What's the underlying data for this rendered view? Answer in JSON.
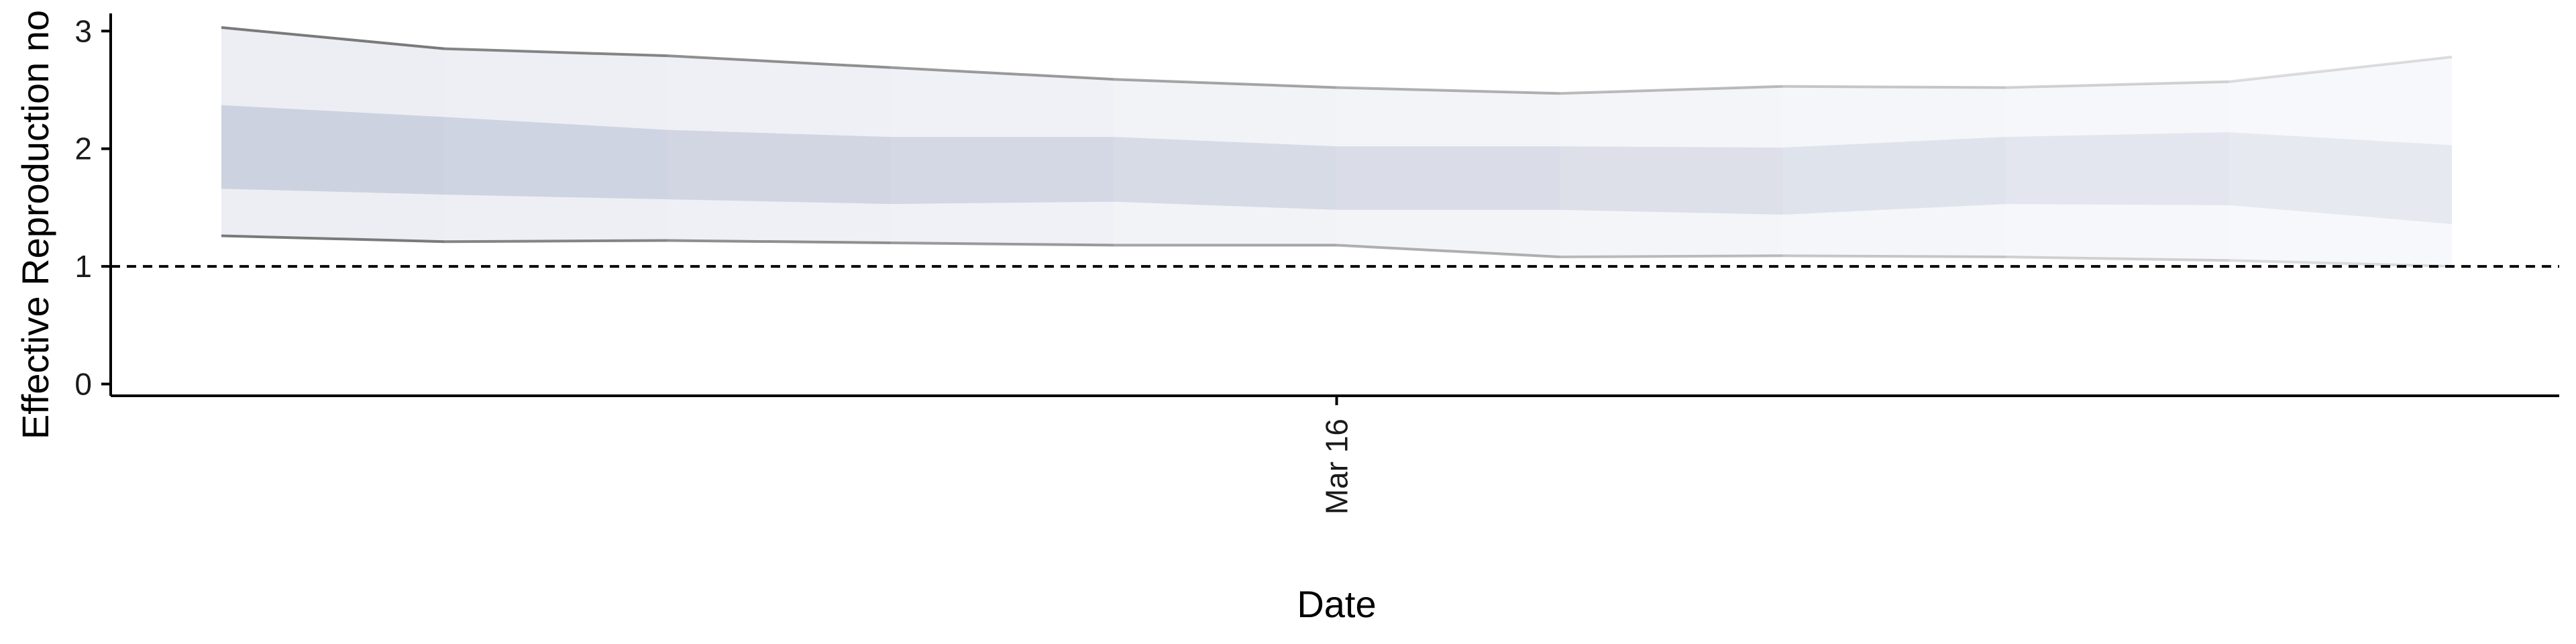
{
  "chart_data": {
    "type": "area",
    "title": "",
    "xlabel": "Date",
    "ylabel": "Effective Reproduction no",
    "x_tick_labels": [
      {
        "value": "2020-03-16",
        "label": "Mar 16"
      }
    ],
    "ylim": [
      -0.1,
      3.15
    ],
    "y_ticks": [
      0,
      1,
      2,
      3
    ],
    "reference_line": {
      "y": 1,
      "style": "dashed"
    },
    "grid": false,
    "x": [
      "2020-03-11",
      "2020-03-12",
      "2020-03-13",
      "2020-03-14",
      "2020-03-15",
      "2020-03-16",
      "2020-03-17",
      "2020-03-18",
      "2020-03-19",
      "2020-03-20",
      "2020-03-21"
    ],
    "outer_upper": [
      3.03,
      2.85,
      2.79,
      2.69,
      2.59,
      2.52,
      2.47,
      2.53,
      2.52,
      2.57,
      2.78
    ],
    "outer_lower": [
      1.26,
      1.21,
      1.22,
      1.2,
      1.18,
      1.18,
      1.08,
      1.09,
      1.08,
      1.05,
      1.0
    ],
    "inner_upper": [
      2.37,
      2.27,
      2.16,
      2.1,
      2.1,
      2.02,
      2.02,
      2.01,
      2.1,
      2.14,
      2.03
    ],
    "inner_lower": [
      1.66,
      1.61,
      1.57,
      1.53,
      1.55,
      1.48,
      1.48,
      1.44,
      1.53,
      1.52,
      1.36
    ],
    "colors": {
      "inner_band": "#cdd2e0",
      "outer_band": "#eceef4",
      "bound_line": "#7a7a7a"
    }
  }
}
